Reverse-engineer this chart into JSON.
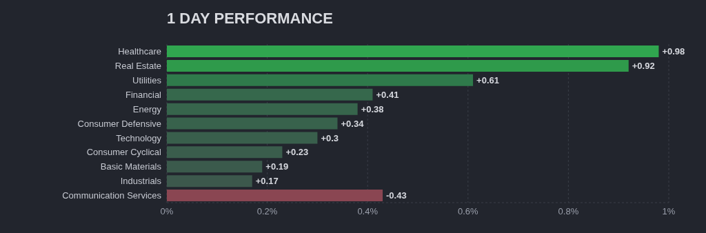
{
  "chart_data": {
    "type": "bar",
    "orientation": "horizontal",
    "title": "1 DAY PERFORMANCE",
    "categories": [
      "Healthcare",
      "Real Estate",
      "Utilities",
      "Financial",
      "Energy",
      "Consumer Defensive",
      "Technology",
      "Consumer Cyclical",
      "Basic Materials",
      "Industrials",
      "Communication Services"
    ],
    "values": [
      0.98,
      0.92,
      0.61,
      0.41,
      0.38,
      0.34,
      0.3,
      0.23,
      0.19,
      0.17,
      -0.43
    ],
    "base": [
      0,
      0,
      0,
      0,
      0,
      0,
      0,
      0,
      0,
      0,
      0.43
    ],
    "value_labels": [
      "+0.98",
      "+0.92",
      "+0.61",
      "+0.41",
      "+0.38",
      "+0.34",
      "+0.3",
      "+0.23",
      "+0.19",
      "+0.17",
      "-0.43"
    ],
    "colors": [
      "#30a64f",
      "#2f9a4b",
      "#2f7a4b",
      "#36684c",
      "#37654c",
      "#38624c",
      "#395f4c",
      "#3a5d4c",
      "#3b5a4c",
      "#3c584c",
      "#8a4652"
    ],
    "xlim": [
      0,
      1
    ],
    "xticks": [
      {
        "value": 0,
        "label": "0%"
      },
      {
        "value": 0.2,
        "label": "0.2%"
      },
      {
        "value": 0.4,
        "label": "0.4%"
      },
      {
        "value": 0.6,
        "label": "0.6%"
      },
      {
        "value": 0.8,
        "label": "0.8%"
      },
      {
        "value": 1,
        "label": "1%"
      }
    ],
    "grid": "x"
  }
}
